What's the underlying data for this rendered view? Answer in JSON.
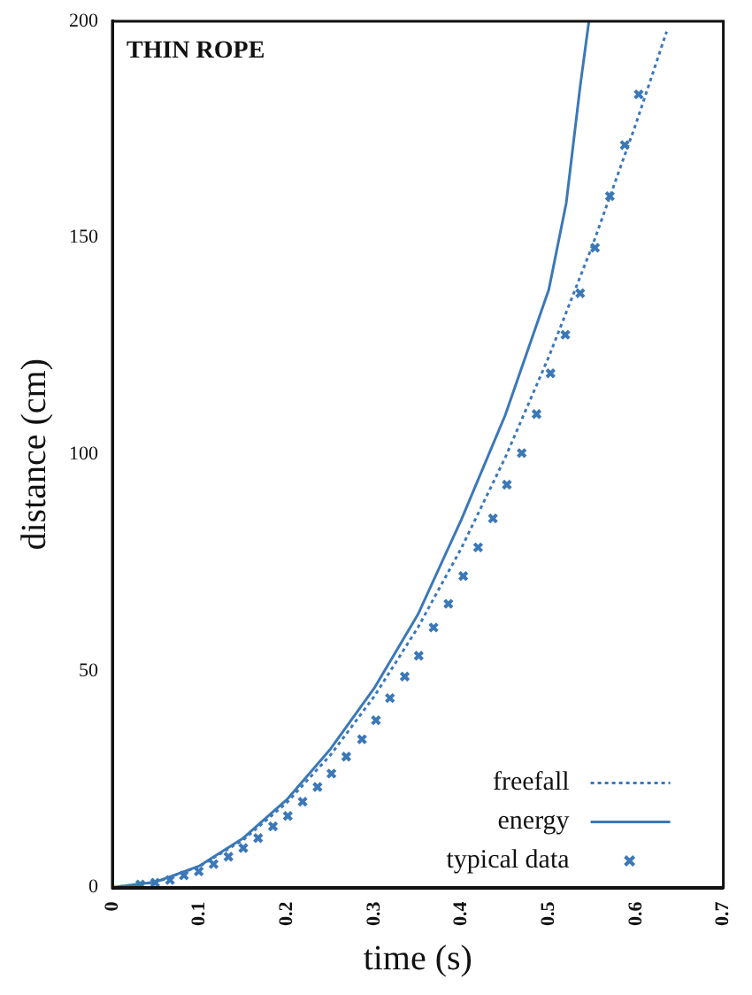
{
  "chart_data": {
    "type": "line",
    "title": "THIN ROPE",
    "xlabel": "time (s)",
    "ylabel": "distance (cm)",
    "xlim": [
      0,
      0.7
    ],
    "xticks": [
      0,
      0.1,
      0.2,
      0.3,
      0.4,
      0.5,
      0.6,
      0.7
    ],
    "ylim": [
      0,
      200
    ],
    "yticks": [
      0,
      50,
      100,
      150,
      200
    ],
    "grid": false,
    "legend": "bottom right",
    "series": [
      {
        "name": "freefall",
        "line_style": "dotted",
        "marker": "none",
        "color": "#3b78b8",
        "x": [
          0,
          0.05,
          0.1,
          0.15,
          0.2,
          0.25,
          0.3,
          0.35,
          0.4,
          0.45,
          0.5,
          0.55,
          0.6,
          0.635
        ],
        "values": [
          0,
          1.2,
          4.9,
          11,
          19.6,
          30.6,
          44.1,
          60,
          78.4,
          99.2,
          122.5,
          148.2,
          176.4,
          197.6
        ]
      },
      {
        "name": "energy",
        "line_style": "solid",
        "marker": "none",
        "color": "#3b78b8",
        "x": [
          0,
          0.05,
          0.1,
          0.15,
          0.2,
          0.25,
          0.3,
          0.35,
          0.4,
          0.45,
          0.5,
          0.52,
          0.536,
          0.546
        ],
        "values": [
          0,
          1.3,
          5,
          11.4,
          20.3,
          32,
          46,
          63,
          85,
          109,
          138,
          158,
          185,
          200
        ]
      },
      {
        "name": "typical data",
        "type": "scatter",
        "marker": "cross",
        "color": "#3b78b8",
        "x": [
          0.032,
          0.049,
          0.066,
          0.082,
          0.099,
          0.116,
          0.133,
          0.15,
          0.167,
          0.184,
          0.201,
          0.218,
          0.235,
          0.251,
          0.268,
          0.286,
          0.302,
          0.318,
          0.335,
          0.351,
          0.368,
          0.385,
          0.402,
          0.419,
          0.436,
          0.452,
          0.469,
          0.486,
          0.502,
          0.519,
          0.536,
          0.553,
          0.57,
          0.587,
          0.603
        ],
        "values": [
          0.7,
          1.1,
          1.7,
          2.8,
          3.7,
          5.4,
          7.1,
          9.1,
          11.4,
          14.1,
          16.5,
          19.8,
          23.2,
          26.3,
          30.2,
          34.2,
          38.6,
          43.7,
          48.7,
          53.5,
          60,
          65.5,
          71.9,
          78.5,
          85.2,
          93,
          100.3,
          109.3,
          118.7,
          127.6,
          137.2,
          147.7,
          159.6,
          171.4,
          183.1
        ]
      }
    ]
  }
}
